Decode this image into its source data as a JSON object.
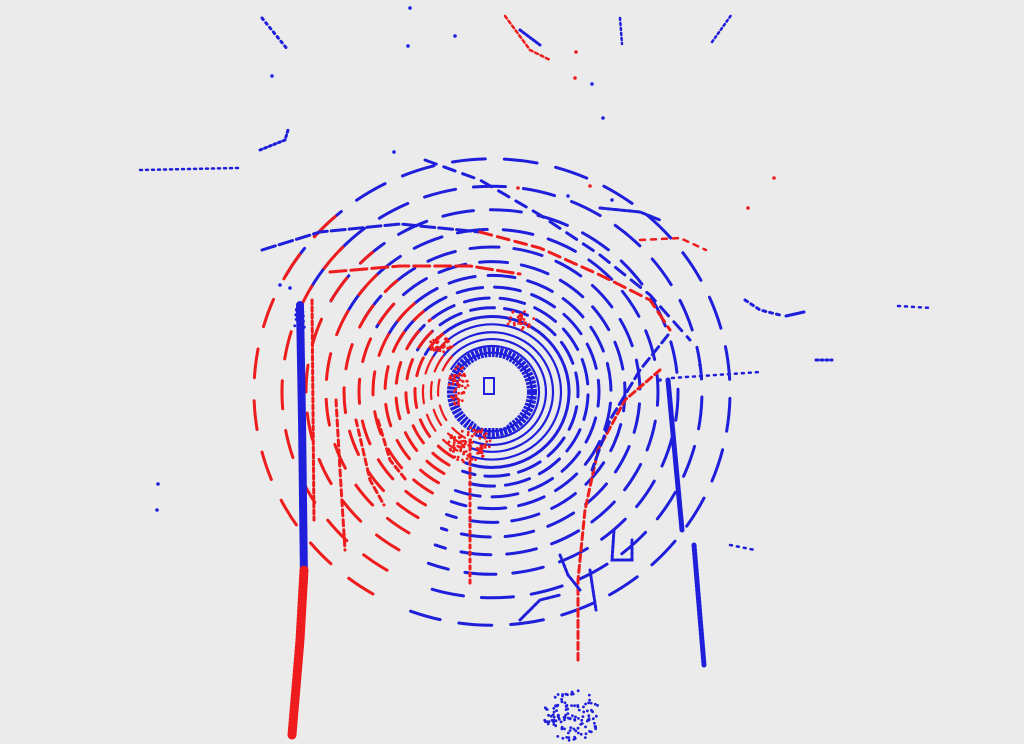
{
  "background": "#ebebeb",
  "colors": {
    "class_a": "#1f1fdb",
    "class_b": "#ee1c1c"
  }
}
